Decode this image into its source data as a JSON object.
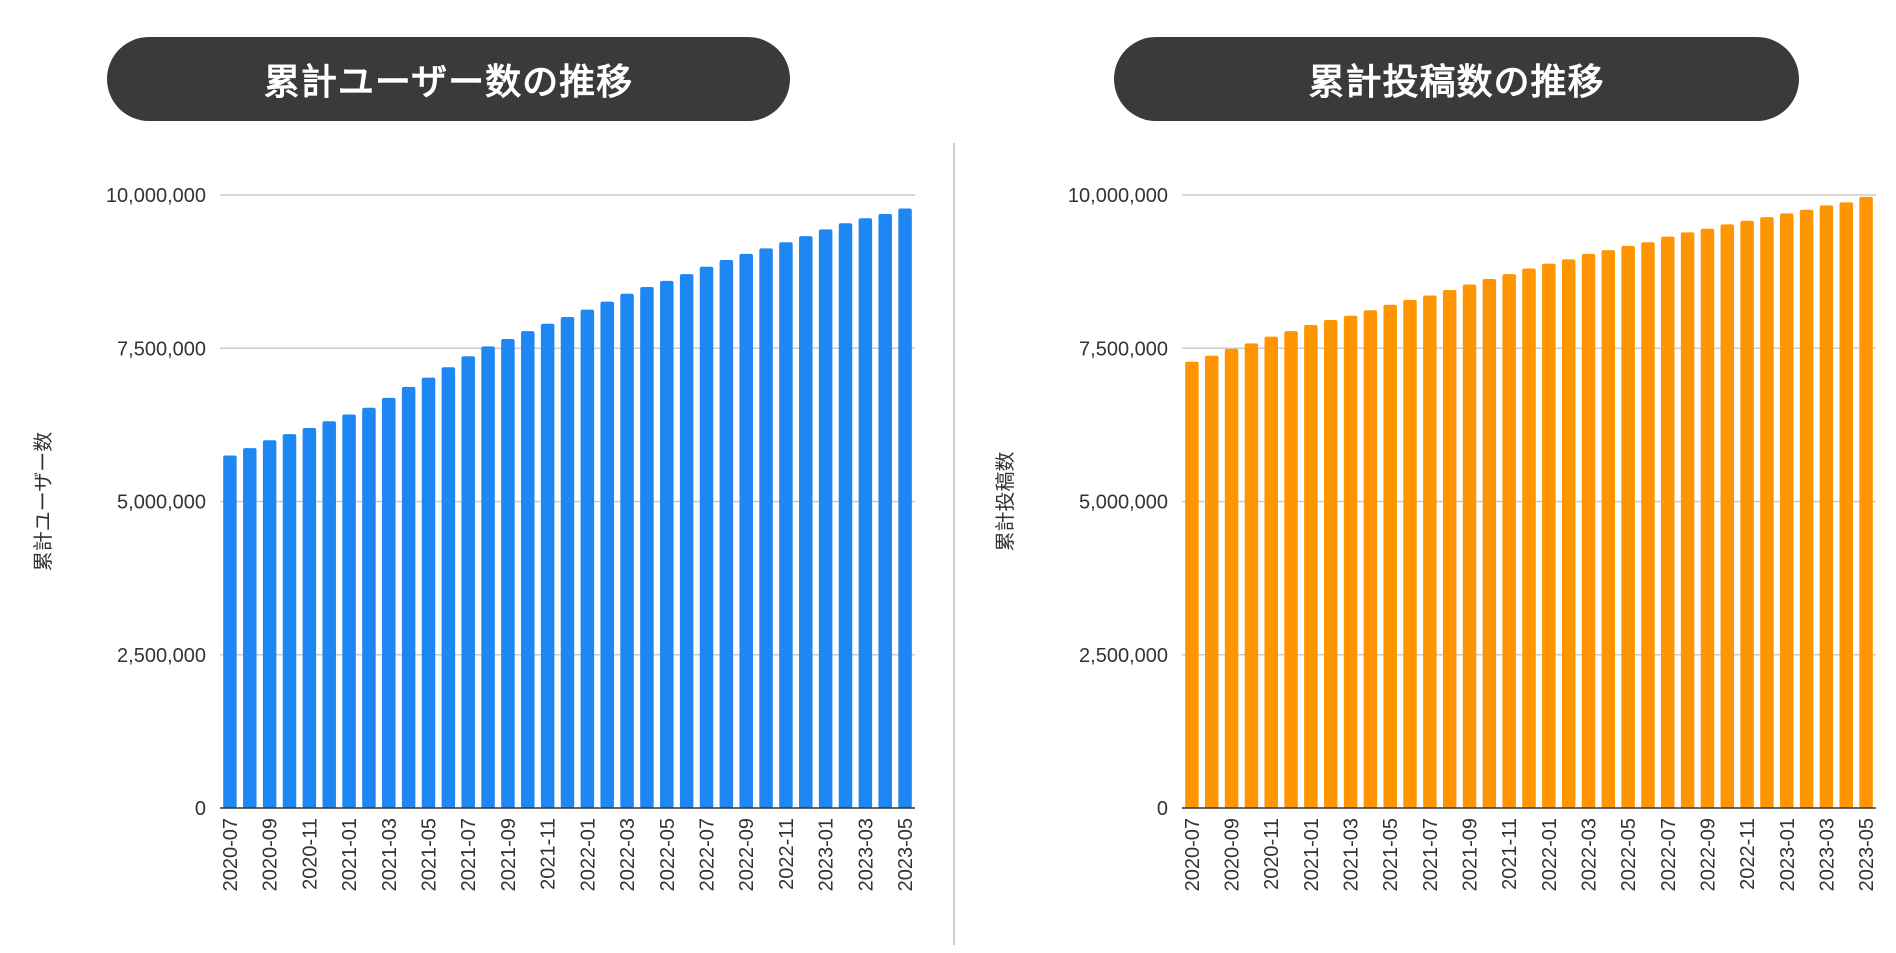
{
  "panels": {
    "left": {
      "title": "累計ユーザー数の推移"
    },
    "right": {
      "title": "累計投稿数の推移"
    }
  },
  "chart_data": [
    {
      "type": "bar",
      "title": "累計ユーザー数の推移",
      "xlabel": "",
      "ylabel": "累計ユーザー数",
      "ylim": [
        0,
        10000000
      ],
      "yticks": [
        0,
        2500000,
        5000000,
        7500000,
        10000000
      ],
      "ytick_labels": [
        "0",
        "2,500,000",
        "5,000,000",
        "7,500,000",
        "10,000,000"
      ],
      "categories": [
        "2020-07",
        "2020-08",
        "2020-09",
        "2020-10",
        "2020-11",
        "2020-12",
        "2021-01",
        "2021-02",
        "2021-03",
        "2021-04",
        "2021-05",
        "2021-06",
        "2021-07",
        "2021-08",
        "2021-09",
        "2021-10",
        "2021-11",
        "2021-12",
        "2022-01",
        "2022-02",
        "2022-03",
        "2022-04",
        "2022-05",
        "2022-06",
        "2022-07",
        "2022-08",
        "2022-09",
        "2022-10",
        "2022-11",
        "2022-12",
        "2023-01",
        "2023-02",
        "2023-03",
        "2023-04",
        "2023-05"
      ],
      "xtick_labels": [
        "2020-07",
        "2020-09",
        "2020-11",
        "2021-01",
        "2021-03",
        "2021-05",
        "2021-07",
        "2021-09",
        "2021-11",
        "2022-01",
        "2022-03",
        "2022-05",
        "2022-07",
        "2022-09",
        "2022-11",
        "2023-01",
        "2023-03",
        "2023-05"
      ],
      "values": [
        5750000,
        5870000,
        6000000,
        6100000,
        6200000,
        6310000,
        6420000,
        6530000,
        6690000,
        6870000,
        7020000,
        7190000,
        7370000,
        7530000,
        7650000,
        7780000,
        7900000,
        8010000,
        8130000,
        8260000,
        8390000,
        8500000,
        8600000,
        8710000,
        8830000,
        8940000,
        9040000,
        9130000,
        9230000,
        9330000,
        9440000,
        9540000,
        9620000,
        9690000,
        9780000
      ],
      "bar_color": "#1f87f4",
      "grid": true,
      "legend": "none"
    },
    {
      "type": "bar",
      "title": "累計投稿数の推移",
      "xlabel": "",
      "ylabel": "累計投稿数",
      "ylim": [
        0,
        10000000
      ],
      "yticks": [
        0,
        2500000,
        5000000,
        7500000,
        10000000
      ],
      "ytick_labels": [
        "0",
        "2,500,000",
        "5,000,000",
        "7,500,000",
        "10,000,000"
      ],
      "categories": [
        "2020-07",
        "2020-08",
        "2020-09",
        "2020-10",
        "2020-11",
        "2020-12",
        "2021-01",
        "2021-02",
        "2021-03",
        "2021-04",
        "2021-05",
        "2021-06",
        "2021-07",
        "2021-08",
        "2021-09",
        "2021-10",
        "2021-11",
        "2021-12",
        "2022-01",
        "2022-02",
        "2022-03",
        "2022-04",
        "2022-05",
        "2022-06",
        "2022-07",
        "2022-08",
        "2022-09",
        "2022-10",
        "2022-11",
        "2022-12",
        "2023-01",
        "2023-02",
        "2023-03",
        "2023-04",
        "2023-05"
      ],
      "xtick_labels": [
        "2020-07",
        "2020-09",
        "2020-11",
        "2021-01",
        "2021-03",
        "2021-05",
        "2021-07",
        "2021-09",
        "2021-11",
        "2022-01",
        "2022-03",
        "2022-05",
        "2022-07",
        "2022-09",
        "2022-11",
        "2023-01",
        "2023-03",
        "2023-05"
      ],
      "values": [
        7280000,
        7380000,
        7490000,
        7580000,
        7690000,
        7780000,
        7880000,
        7960000,
        8030000,
        8120000,
        8210000,
        8290000,
        8360000,
        8450000,
        8540000,
        8630000,
        8710000,
        8800000,
        8880000,
        8950000,
        9040000,
        9100000,
        9170000,
        9230000,
        9320000,
        9390000,
        9450000,
        9520000,
        9580000,
        9640000,
        9700000,
        9760000,
        9830000,
        9880000,
        9970000
      ],
      "bar_color": "#ff9500",
      "grid": true,
      "legend": "none"
    }
  ]
}
